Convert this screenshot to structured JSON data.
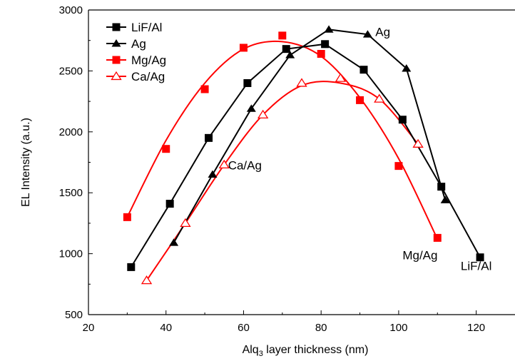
{
  "chart_data": {
    "type": "line",
    "xlabel_main": "Alq",
    "xlabel_sub": "3",
    "xlabel_rest": " layer thickness (nm)",
    "ylabel": "EL Intensity (a.u.)",
    "xlim": [
      20,
      130
    ],
    "ylim": [
      500,
      3000
    ],
    "xticks": [
      20,
      40,
      60,
      80,
      100,
      120
    ],
    "yticks": [
      500,
      1000,
      1500,
      2000,
      2500,
      3000
    ],
    "legend_position": "top-left",
    "series": [
      {
        "name": "LiF/Al",
        "color": "#000000",
        "marker": "square-filled",
        "x": [
          31,
          41,
          51,
          61,
          71,
          81,
          91,
          101,
          111,
          121
        ],
        "y": [
          890,
          1410,
          1950,
          2400,
          2680,
          2720,
          2510,
          2100,
          1550,
          970
        ]
      },
      {
        "name": "Ag",
        "color": "#000000",
        "marker": "triangle-filled",
        "x": [
          42,
          52,
          62,
          72,
          82,
          92,
          102,
          112
        ],
        "y": [
          1090,
          1650,
          2190,
          2630,
          2840,
          2800,
          2520,
          1440
        ]
      },
      {
        "name": "Mg/Ag",
        "color": "#ff0000",
        "marker": "square-filled",
        "x": [
          30,
          40,
          50,
          60,
          70,
          80,
          90,
          100,
          110
        ],
        "y": [
          1300,
          1860,
          2350,
          2690,
          2790,
          2640,
          2260,
          1720,
          1130
        ]
      },
      {
        "name": "Ca/Ag",
        "color": "#ff0000",
        "marker": "triangle-open",
        "x": [
          35,
          45,
          55,
          65,
          75,
          85,
          95,
          105
        ],
        "y": [
          780,
          1250,
          1730,
          2140,
          2400,
          2440,
          2270,
          1900
        ]
      }
    ],
    "fits": {
      "Mg/Ag": {
        "x": [
          30,
          40,
          50,
          60,
          70,
          80,
          90,
          100,
          110
        ],
        "y": [
          1300,
          1930,
          2400,
          2680,
          2740,
          2620,
          2280,
          1780,
          1120
        ]
      },
      "Ca/Ag": {
        "x": [
          35,
          45,
          55,
          65,
          75,
          85,
          95,
          105
        ],
        "y": [
          780,
          1250,
          1730,
          2140,
          2380,
          2400,
          2270,
          1900
        ]
      }
    },
    "annotations": [
      {
        "text": "Ag",
        "x": 94,
        "y": 2785
      },
      {
        "text": "Ca/Ag",
        "x": 56,
        "y": 1690
      },
      {
        "text": "Mg/Ag",
        "x": 101,
        "y": 955
      },
      {
        "text": "LiF/Al",
        "x": 116,
        "y": 865
      }
    ]
  }
}
